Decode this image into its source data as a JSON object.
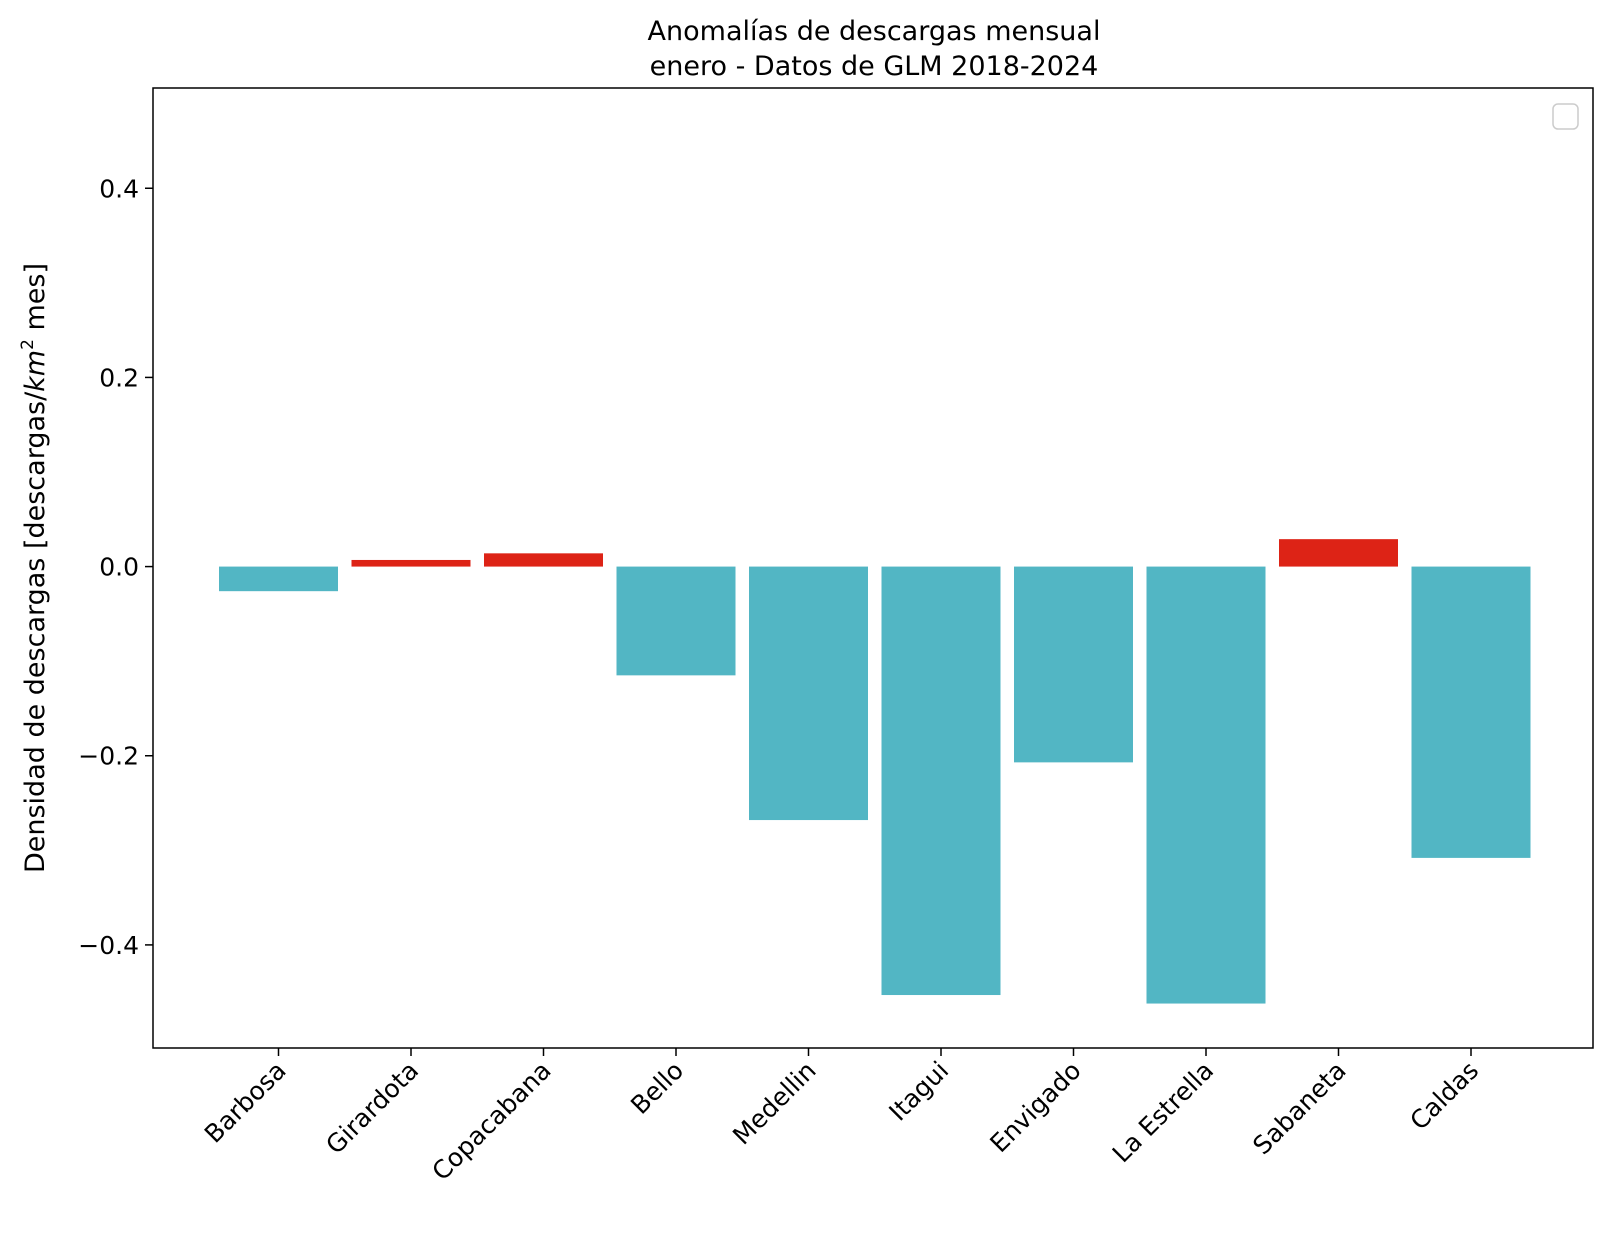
{
  "chart_data": {
    "type": "bar",
    "title_line1": "Anomalías de descargas mensual",
    "title_line2": "enero - Datos de GLM 2018-2024",
    "xlabel": "",
    "ylabel_prefix": "Densidad de descargas [descargas/",
    "ylabel_unit": "km",
    "ylabel_exp": "2",
    "ylabel_suffix": " mes]",
    "categories": [
      "Barbosa",
      "Girardota",
      "Copacabana",
      "Bello",
      "Medellin",
      "Itagui",
      "Envigado",
      "La Estrella",
      "Sabaneta",
      "Caldas"
    ],
    "values": [
      -0.026,
      0.007,
      0.014,
      -0.115,
      -0.268,
      -0.453,
      -0.207,
      -0.462,
      0.029,
      -0.308
    ],
    "ylim": [
      -0.509,
      0.506
    ],
    "yticks": [
      0.4,
      0.2,
      0.0,
      -0.2,
      -0.4
    ],
    "ytick_labels": [
      "0.4",
      "0.2",
      "0.0",
      "−0.2",
      "−0.4"
    ],
    "colors": {
      "positive": "#dd2316",
      "negative": "#52b6c4"
    },
    "legend": {
      "placement": "top-right",
      "entries": []
    },
    "grid": false
  }
}
